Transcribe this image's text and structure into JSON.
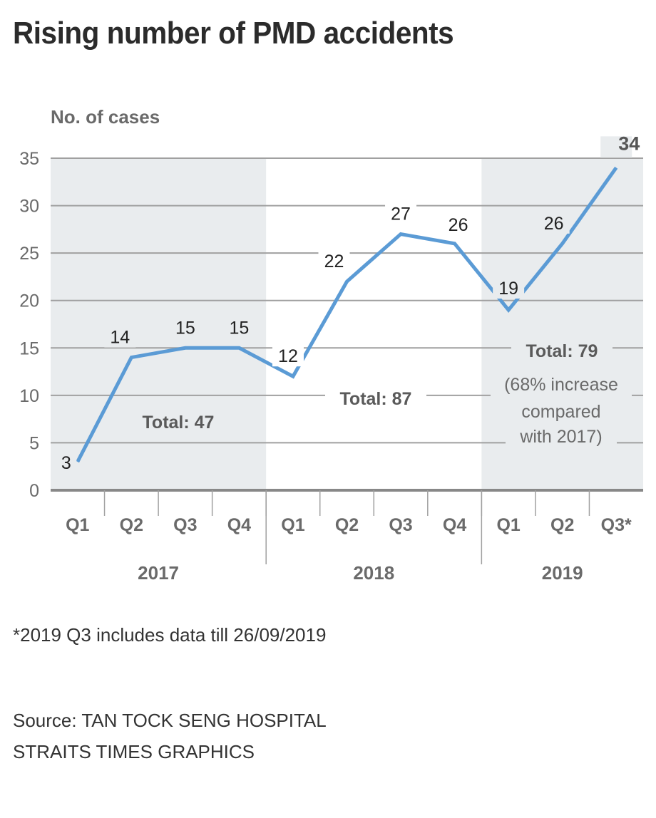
{
  "title": "Rising number of PMD accidents",
  "footnote": "*2019 Q3 includes data till 26/09/2019",
  "source_line1": "Source: TAN TOCK SENG HOSPITAL",
  "source_line2": "STRAITS TIMES GRAPHICS",
  "colors": {
    "line": "#5b9bd5",
    "shade": "#e9ecee",
    "grid": "#a0a0a0",
    "axis": "#888888"
  },
  "chart_data": {
    "type": "line",
    "title": "Rising number of PMD accidents",
    "ylabel": "No. of cases",
    "xlabel": "",
    "ylim": [
      0,
      35
    ],
    "yticks": [
      0,
      5,
      10,
      15,
      20,
      25,
      30,
      35
    ],
    "grid": true,
    "categories": [
      "Q1",
      "Q2",
      "Q3",
      "Q4",
      "Q1",
      "Q2",
      "Q3",
      "Q4",
      "Q1",
      "Q2",
      "Q3*"
    ],
    "years": [
      {
        "label": "2017",
        "quarters": 4,
        "shaded": true,
        "total_label": "Total: 47"
      },
      {
        "label": "2018",
        "quarters": 4,
        "shaded": false,
        "total_label": "Total: 87"
      },
      {
        "label": "2019",
        "quarters": 3,
        "shaded": true,
        "total_label": "Total: 79"
      }
    ],
    "series": [
      {
        "name": "No. of cases",
        "values": [
          3,
          14,
          15,
          15,
          12,
          22,
          27,
          26,
          19,
          26,
          34
        ]
      }
    ],
    "annotations": {
      "increase_note": [
        "(68% increase",
        "compared",
        "with 2017)"
      ]
    }
  }
}
